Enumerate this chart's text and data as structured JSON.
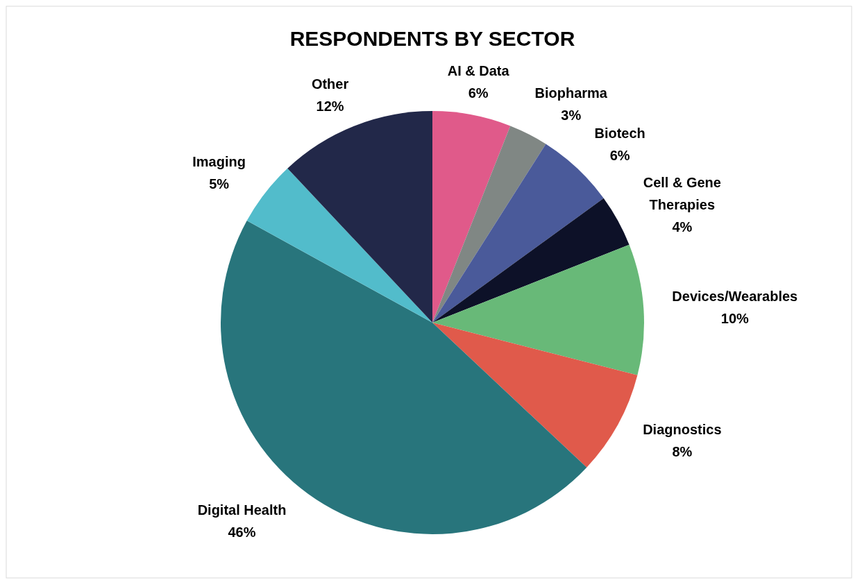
{
  "chart_data": {
    "type": "pie",
    "title": "RESPONDENTS BY SECTOR",
    "categories": [
      "AI & Data",
      "Biopharma",
      "Biotech",
      "Cell & Gene Therapies",
      "Devices/Wearables",
      "Diagnostics",
      "Digital Health",
      "Imaging",
      "Other"
    ],
    "values": [
      6,
      3,
      6,
      4,
      10,
      8,
      46,
      5,
      12
    ],
    "value_labels": [
      "6%",
      "3%",
      "6%",
      "4%",
      "10%",
      "8%",
      "46%",
      "5%",
      "12%"
    ],
    "colors": [
      "#e05a8a",
      "#808784",
      "#4a5a9a",
      "#0d1128",
      "#68b978",
      "#e05a4b",
      "#28757c",
      "#52bccb",
      "#222849"
    ]
  }
}
